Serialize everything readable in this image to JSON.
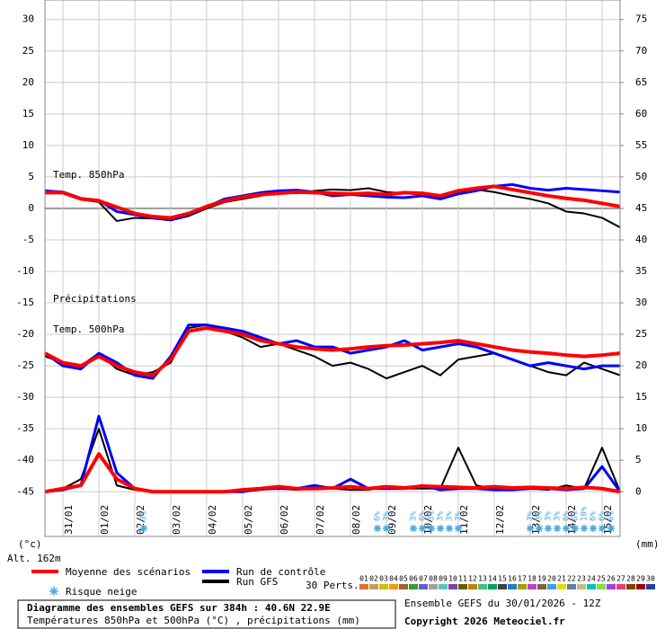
{
  "chart_data": {
    "type": "line",
    "annotations": {
      "t850": "Temp. 850hPa",
      "precip": "Précipitations",
      "t500": "Temp. 500hPa",
      "yunit": "(°c)",
      "y2unit": "(mm)",
      "altitude": "Alt. 162m",
      "snow": "Risque neige",
      "perts": "30 Perts."
    },
    "footer": {
      "title": "Diagramme des ensembles GEFS sur 384h : 40.6N 22.9E",
      "subtitle": "Températures 850hPa et 500hPa (°C) , précipitations (mm)",
      "run": "Ensemble GEFS du 30/01/2026 - 12Z",
      "copyright": "Copyright 2026 Meteociel.fr"
    },
    "xlim": [
      0,
      384
    ],
    "xticks": [
      {
        "value": 12,
        "label": "31/01"
      },
      {
        "value": 36,
        "label": "01/02"
      },
      {
        "value": 60,
        "label": "02/02"
      },
      {
        "value": 84,
        "label": "03/02"
      },
      {
        "value": 108,
        "label": "04/02"
      },
      {
        "value": 132,
        "label": "05/02"
      },
      {
        "value": 156,
        "label": "06/02"
      },
      {
        "value": 180,
        "label": "07/02"
      },
      {
        "value": 204,
        "label": "08/02"
      },
      {
        "value": 228,
        "label": "09/02"
      },
      {
        "value": 252,
        "label": "10/02"
      },
      {
        "value": 276,
        "label": "11/02"
      },
      {
        "value": 300,
        "label": "12/02"
      },
      {
        "value": 324,
        "label": "13/02"
      },
      {
        "value": 348,
        "label": "14/02"
      },
      {
        "value": 372,
        "label": "15/02"
      }
    ],
    "ylim": [
      -52.1,
      33.1
    ],
    "yticks": [
      30,
      25,
      20,
      15,
      10,
      5,
      0,
      -5,
      -10,
      -15,
      -20,
      -25,
      -30,
      -35,
      -40,
      -45
    ],
    "y2lim": [
      -7.1,
      78.1
    ],
    "y2ticks": [
      75,
      70,
      65,
      60,
      55,
      50,
      45,
      40,
      35,
      30,
      25,
      20,
      15,
      10,
      5,
      0
    ],
    "x": [
      0,
      12,
      24,
      36,
      48,
      60,
      72,
      84,
      96,
      108,
      120,
      132,
      144,
      156,
      168,
      180,
      192,
      204,
      216,
      228,
      240,
      252,
      264,
      276,
      288,
      300,
      312,
      324,
      336,
      348,
      360,
      372,
      384
    ],
    "series": [
      {
        "name": "Moyenne des scénarios",
        "color": "#ff0000",
        "t850": [
          2.5,
          2.5,
          1.5,
          1.2,
          0.2,
          -0.8,
          -1.3,
          -1.5,
          -0.8,
          0.3,
          1.2,
          1.8,
          2.2,
          2.4,
          2.6,
          2.5,
          2.4,
          2.3,
          2.4,
          2.2,
          2.5,
          2.4,
          2.0,
          2.8,
          3.2,
          3.5,
          3.0,
          2.5,
          2.0,
          1.6,
          1.3,
          0.8,
          0.3
        ],
        "t500": [
          -23,
          -24.5,
          -25,
          -23.5,
          -25,
          -26,
          -26.5,
          -24,
          -19.5,
          -19,
          -19.5,
          -20,
          -21,
          -21.5,
          -22,
          -22.3,
          -22.5,
          -22.3,
          -22,
          -21.8,
          -21.7,
          -21.5,
          -21.3,
          -21,
          -21.5,
          -22,
          -22.5,
          -22.8,
          -23,
          -23.3,
          -23.5,
          -23.3,
          -23
        ],
        "precip": [
          0,
          0.5,
          1,
          6,
          2,
          0.5,
          0,
          0,
          0,
          0,
          0,
          0.3,
          0.5,
          0.8,
          0.5,
          0.5,
          0.6,
          0.8,
          0.5,
          0.8,
          0.6,
          0.9,
          0.8,
          0.7,
          0.6,
          0.8,
          0.6,
          0.7,
          0.6,
          0.5,
          0.7,
          0.5,
          0
        ]
      },
      {
        "name": "Run de contrôle",
        "color": "#0000ff",
        "t850": [
          2.8,
          2.6,
          1.6,
          1.3,
          -0.5,
          -1.0,
          -1.5,
          -1.8,
          -1.0,
          0.2,
          1.5,
          2.0,
          2.5,
          2.8,
          2.9,
          2.6,
          2.0,
          2.2,
          2.0,
          1.8,
          1.7,
          2.0,
          1.5,
          2.3,
          2.8,
          3.5,
          3.8,
          3.2,
          2.9,
          3.2,
          3.0,
          2.8,
          2.6
        ],
        "t500": [
          -23,
          -25,
          -25.5,
          -23,
          -24.5,
          -26.5,
          -27,
          -23.5,
          -18.5,
          -18.5,
          -19,
          -19.5,
          -20.5,
          -21.5,
          -21,
          -22,
          -22,
          -23,
          -22.5,
          -22,
          -21,
          -22.5,
          -22,
          -21.5,
          -22,
          -23,
          -24,
          -25,
          -24.5,
          -25,
          -25.5,
          -25,
          -25
        ],
        "precip": [
          0,
          0.3,
          1,
          12,
          3,
          0.5,
          0,
          0,
          0,
          0,
          0,
          0,
          0.5,
          0.5,
          0.5,
          1,
          0.5,
          2,
          0.5,
          0.5,
          0.5,
          1,
          0.3,
          0.5,
          0.5,
          0.3,
          0.3,
          0.5,
          0.5,
          0.3,
          0.5,
          4,
          0
        ]
      },
      {
        "name": "Run GFS",
        "color": "#000000",
        "t850": [
          2.6,
          2.4,
          1.4,
          1.0,
          -2.0,
          -1.5,
          -1.6,
          -1.9,
          -1.2,
          0.0,
          1.0,
          1.5,
          2.0,
          2.5,
          2.4,
          2.8,
          3.0,
          2.9,
          3.2,
          2.6,
          2.4,
          2.2,
          1.8,
          2.5,
          3.0,
          2.6,
          2.0,
          1.5,
          0.8,
          -0.5,
          -0.8,
          -1.5,
          -3.0
        ],
        "t500": [
          -23.5,
          -24.5,
          -25,
          -23,
          -25.5,
          -26.5,
          -26,
          -24.5,
          -19,
          -18.5,
          -19.5,
          -20.5,
          -22,
          -21.5,
          -22.5,
          -23.5,
          -25,
          -24.5,
          -25.5,
          -27,
          -26,
          -25,
          -26.5,
          -24,
          -23.5,
          -23,
          -24,
          -25,
          -26,
          -26.5,
          -24.5,
          -25.5,
          -26.5
        ],
        "precip": [
          0,
          0.5,
          2,
          10,
          1,
          0.3,
          0,
          0,
          0,
          0,
          0,
          0,
          0.3,
          0.5,
          0.3,
          0.5,
          0.5,
          0.3,
          0.3,
          0.8,
          0.5,
          0.5,
          0.5,
          7,
          1,
          0.5,
          0.3,
          0.5,
          0.3,
          1,
          0.5,
          7,
          0
        ]
      }
    ],
    "snow_risk": {
      "x": [
        66,
        222,
        228,
        246,
        252,
        258,
        264,
        270,
        276,
        324,
        330,
        336,
        342,
        348,
        354,
        360,
        366,
        372,
        378
      ],
      "labels": [
        "3%",
        "6%",
        "3%",
        "3%",
        "6%",
        "3%",
        "3%",
        "3%",
        "3%",
        "3%",
        "3%",
        "3%",
        "3%",
        "6%",
        "6%",
        "10%",
        "6%",
        "6%",
        "6%"
      ]
    },
    "perturbations": [
      {
        "label": "01",
        "color": "#e07030"
      },
      {
        "label": "02",
        "color": "#c0a060"
      },
      {
        "label": "03",
        "color": "#d0c000"
      },
      {
        "label": "04",
        "color": "#f0a000"
      },
      {
        "label": "05",
        "color": "#a06030"
      },
      {
        "label": "06",
        "color": "#30a030"
      },
      {
        "label": "07",
        "color": "#6060c0"
      },
      {
        "label": "08",
        "color": "#a0a0a0"
      },
      {
        "label": "09",
        "color": "#60c0c0"
      },
      {
        "label": "10",
        "color": "#8040a0"
      },
      {
        "label": "11",
        "color": "#606000"
      },
      {
        "label": "12",
        "color": "#c08000"
      },
      {
        "label": "13",
        "color": "#40c080"
      },
      {
        "label": "14",
        "color": "#00a060"
      },
      {
        "label": "15",
        "color": "#404040"
      },
      {
        "label": "16",
        "color": "#2080c0"
      },
      {
        "label": "17",
        "color": "#a0a000"
      },
      {
        "label": "18",
        "color": "#c040c0"
      },
      {
        "label": "19",
        "color": "#806040"
      },
      {
        "label": "20",
        "color": "#40a0e0"
      },
      {
        "label": "21",
        "color": "#e0e000"
      },
      {
        "label": "22",
        "color": "#6080a0"
      },
      {
        "label": "23",
        "color": "#c0c080"
      },
      {
        "label": "24",
        "color": "#00c0c0"
      },
      {
        "label": "25",
        "color": "#80e040"
      },
      {
        "label": "26",
        "color": "#a040e0"
      },
      {
        "label": "27",
        "color": "#e04080"
      },
      {
        "label": "28",
        "color": "#804000"
      },
      {
        "label": "29",
        "color": "#a00000"
      },
      {
        "label": "30",
        "color": "#2040a0"
      }
    ]
  }
}
